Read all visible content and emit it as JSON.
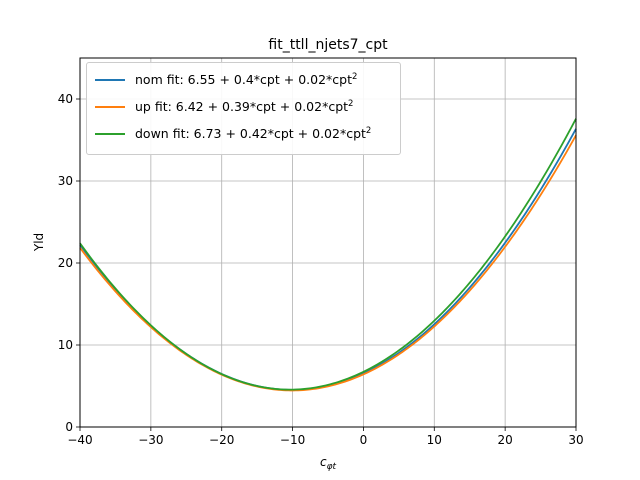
{
  "chart_data": {
    "type": "line",
    "title": "fit_ttll_njets7_cpt",
    "xlabel": "c",
    "xlabel_sub": "φt",
    "ylabel": "Yld",
    "xlim": [
      -40,
      30
    ],
    "ylim": [
      0,
      45
    ],
    "xticks": [
      -40,
      -30,
      -20,
      -10,
      0,
      10,
      20,
      30
    ],
    "xtick_labels": [
      "−40",
      "−30",
      "−20",
      "−10",
      "0",
      "10",
      "20",
      "30"
    ],
    "yticks": [
      0,
      10,
      20,
      30,
      40
    ],
    "ytick_labels": [
      "0",
      "10",
      "20",
      "30",
      "40"
    ],
    "grid": true,
    "legend_position": "top-left",
    "series": [
      {
        "name": "nom fit: 6.55 + 0.4*cpt + 0.02*cpt",
        "sup": "2",
        "color": "#1f77b4",
        "coeffs": [
          6.55,
          0.4,
          0.0198
        ]
      },
      {
        "name": "up fit: 6.42 + 0.39*cpt + 0.02*cpt",
        "sup": "2",
        "color": "#ff7f0e",
        "coeffs": [
          6.42,
          0.39,
          0.0194
        ]
      },
      {
        "name": "down fit: 6.73 + 0.42*cpt + 0.02*cpt",
        "sup": "2",
        "color": "#2ca02c",
        "coeffs": [
          6.73,
          0.42,
          0.0203
        ]
      }
    ]
  }
}
